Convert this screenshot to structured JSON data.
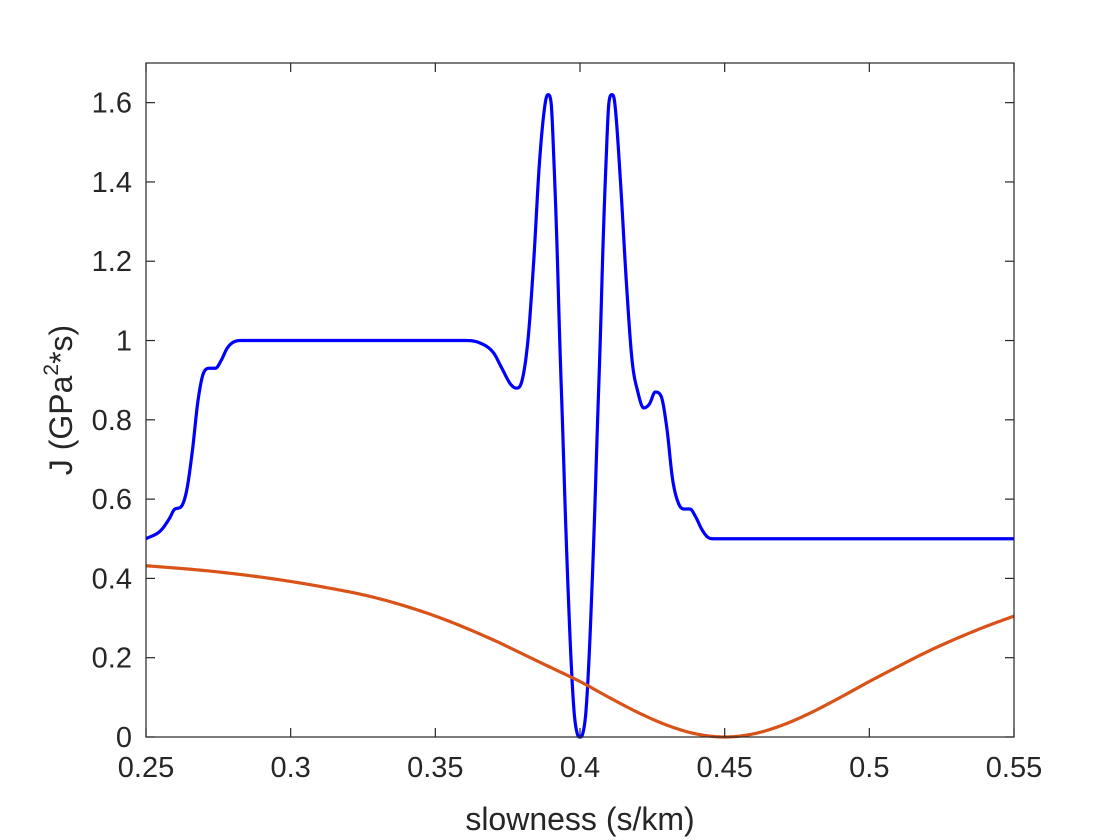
{
  "chart_data": {
    "type": "line",
    "title": "",
    "xlabel": "slowness (s/km)",
    "ylabel": {
      "base": "J (GPa",
      "sup": "2",
      "suffix": "*s)"
    },
    "xlim": [
      0.25,
      0.55
    ],
    "ylim": [
      0,
      1.7
    ],
    "xticks": [
      0.25,
      0.3,
      0.35,
      0.4,
      0.45,
      0.5,
      0.55
    ],
    "xtick_labels": [
      "0.25",
      "0.3",
      "0.35",
      "0.4",
      "0.45",
      "0.5",
      "0.55"
    ],
    "yticks": [
      0,
      0.2,
      0.4,
      0.6,
      0.8,
      1.0,
      1.2,
      1.4,
      1.6
    ],
    "ytick_labels": [
      "0",
      "0.2",
      "0.4",
      "0.6",
      "0.8",
      "1",
      "1.2",
      "1.4",
      "1.6"
    ],
    "grid": false,
    "legend": "none",
    "series": [
      {
        "color": "#0000ff",
        "x": [
          0.25,
          0.255,
          0.258,
          0.26,
          0.262,
          0.264,
          0.266,
          0.268,
          0.27,
          0.272,
          0.274,
          0.276,
          0.278,
          0.28,
          0.283,
          0.29,
          0.3,
          0.32,
          0.34,
          0.36,
          0.365,
          0.37,
          0.373,
          0.376,
          0.378,
          0.38,
          0.382,
          0.384,
          0.386,
          0.388,
          0.389,
          0.39,
          0.391,
          0.392,
          0.393,
          0.394,
          0.395,
          0.396,
          0.397,
          0.398,
          0.399,
          0.4,
          0.401,
          0.402,
          0.403,
          0.404,
          0.405,
          0.406,
          0.407,
          0.408,
          0.409,
          0.41,
          0.411,
          0.412,
          0.414,
          0.416,
          0.418,
          0.42,
          0.422,
          0.424,
          0.426,
          0.428,
          0.43,
          0.432,
          0.434,
          0.436,
          0.438,
          0.44,
          0.442,
          0.444,
          0.446,
          0.45,
          0.46,
          0.5,
          0.55
        ],
        "y": [
          0.5,
          0.52,
          0.55,
          0.575,
          0.58,
          0.62,
          0.72,
          0.85,
          0.92,
          0.93,
          0.93,
          0.95,
          0.98,
          0.995,
          1.0,
          1.0,
          1.0,
          1.0,
          1.0,
          1.0,
          0.995,
          0.97,
          0.93,
          0.89,
          0.88,
          0.9,
          1.0,
          1.2,
          1.45,
          1.6,
          1.62,
          1.6,
          1.45,
          1.25,
          1.0,
          0.78,
          0.55,
          0.35,
          0.18,
          0.06,
          0.01,
          0.0,
          0.01,
          0.06,
          0.18,
          0.35,
          0.55,
          0.78,
          1.0,
          1.25,
          1.45,
          1.6,
          1.62,
          1.6,
          1.4,
          1.15,
          0.95,
          0.87,
          0.83,
          0.84,
          0.87,
          0.86,
          0.78,
          0.65,
          0.59,
          0.575,
          0.575,
          0.555,
          0.525,
          0.505,
          0.5,
          0.5,
          0.5,
          0.5,
          0.5
        ]
      },
      {
        "color": "#d95319",
        "x": [
          0.25,
          0.27,
          0.29,
          0.31,
          0.33,
          0.35,
          0.37,
          0.38,
          0.39,
          0.4,
          0.41,
          0.42,
          0.43,
          0.44,
          0.45,
          0.46,
          0.47,
          0.48,
          0.49,
          0.5,
          0.51,
          0.52,
          0.53,
          0.54,
          0.55
        ],
        "y": [
          0.432,
          0.42,
          0.403,
          0.38,
          0.35,
          0.305,
          0.245,
          0.21,
          0.175,
          0.14,
          0.1,
          0.062,
          0.03,
          0.008,
          0.0,
          0.008,
          0.03,
          0.062,
          0.1,
          0.14,
          0.178,
          0.215,
          0.248,
          0.278,
          0.305
        ]
      }
    ]
  }
}
